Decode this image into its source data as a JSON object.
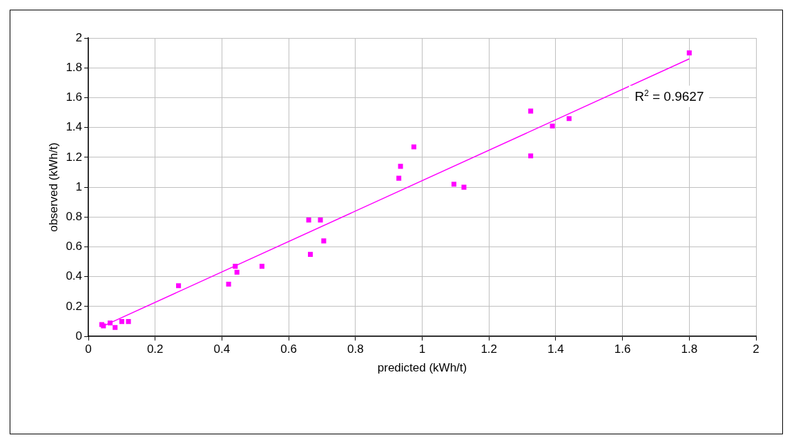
{
  "chart_data": {
    "type": "scatter",
    "xlabel": "predicted (kWh/t)",
    "ylabel": "observed (kWh/t)",
    "xlim": [
      0,
      2
    ],
    "xticks": [
      0,
      0.2,
      0.4,
      0.6,
      0.8,
      1,
      1.2,
      1.4,
      1.6,
      1.8,
      2
    ],
    "ylim": [
      0,
      2
    ],
    "yticks": [
      0,
      0.2,
      0.4,
      0.6,
      0.8,
      1,
      1.2,
      1.4,
      1.6,
      1.8,
      2
    ],
    "grid": true,
    "legend": false,
    "series": [
      {
        "marker": "square",
        "color": "#ff00ff",
        "x": [
          0.04,
          0.045,
          0.065,
          0.08,
          0.1,
          0.12,
          0.27,
          0.42,
          0.44,
          0.445,
          0.52,
          0.66,
          0.665,
          0.695,
          0.705,
          0.93,
          0.935,
          0.975,
          1.095,
          1.125,
          1.325,
          1.325,
          1.39,
          1.44,
          1.8
        ],
        "values": [
          0.08,
          0.07,
          0.09,
          0.06,
          0.1,
          0.1,
          0.34,
          0.35,
          0.47,
          0.43,
          0.47,
          0.78,
          0.55,
          0.78,
          0.64,
          1.06,
          1.14,
          1.27,
          1.02,
          1.0,
          1.51,
          1.21,
          1.41,
          1.46,
          1.9
        ]
      },
      {
        "type": "line",
        "marker": "none",
        "color": "#ff00ff",
        "line_style": "solid",
        "x": [
          0.04,
          1.8
        ],
        "values": [
          0.065,
          1.86
        ]
      }
    ],
    "annotations": [
      "R$^{2}$ = 0.9627"
    ]
  }
}
